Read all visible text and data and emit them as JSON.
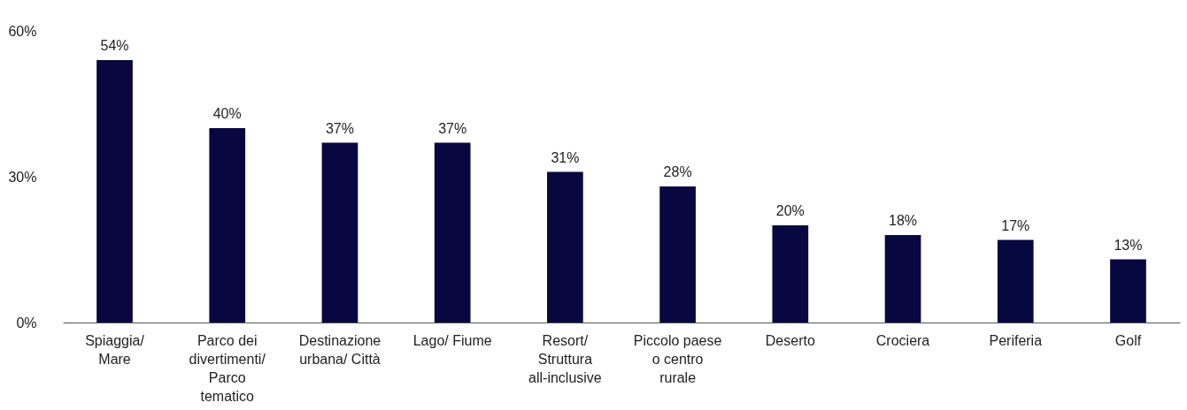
{
  "chart_data": {
    "type": "bar",
    "categories": [
      "Spiaggia/ Mare",
      "Parco dei divertimenti/ Parco tematico",
      "Destinazione urbana/ Città",
      "Lago/ Fiume",
      "Resort/ Struttura all-inclusive",
      "Piccolo paese o centro rurale",
      "Deserto",
      "Crociera",
      "Periferia",
      "Golf"
    ],
    "values": [
      54,
      40,
      37,
      37,
      31,
      28,
      20,
      18,
      17,
      13
    ],
    "color": "#080740",
    "ylim": [
      0,
      60
    ],
    "yticks": [
      {
        "value": 0,
        "label": "0%"
      },
      {
        "value": 30,
        "label": "30%"
      },
      {
        "value": 60,
        "label": "60%"
      }
    ],
    "value_labels": [
      "54%",
      "40%",
      "37%",
      "37%",
      "31%",
      "28%",
      "20%",
      "18%",
      "17%",
      "13%"
    ],
    "grid": false
  }
}
